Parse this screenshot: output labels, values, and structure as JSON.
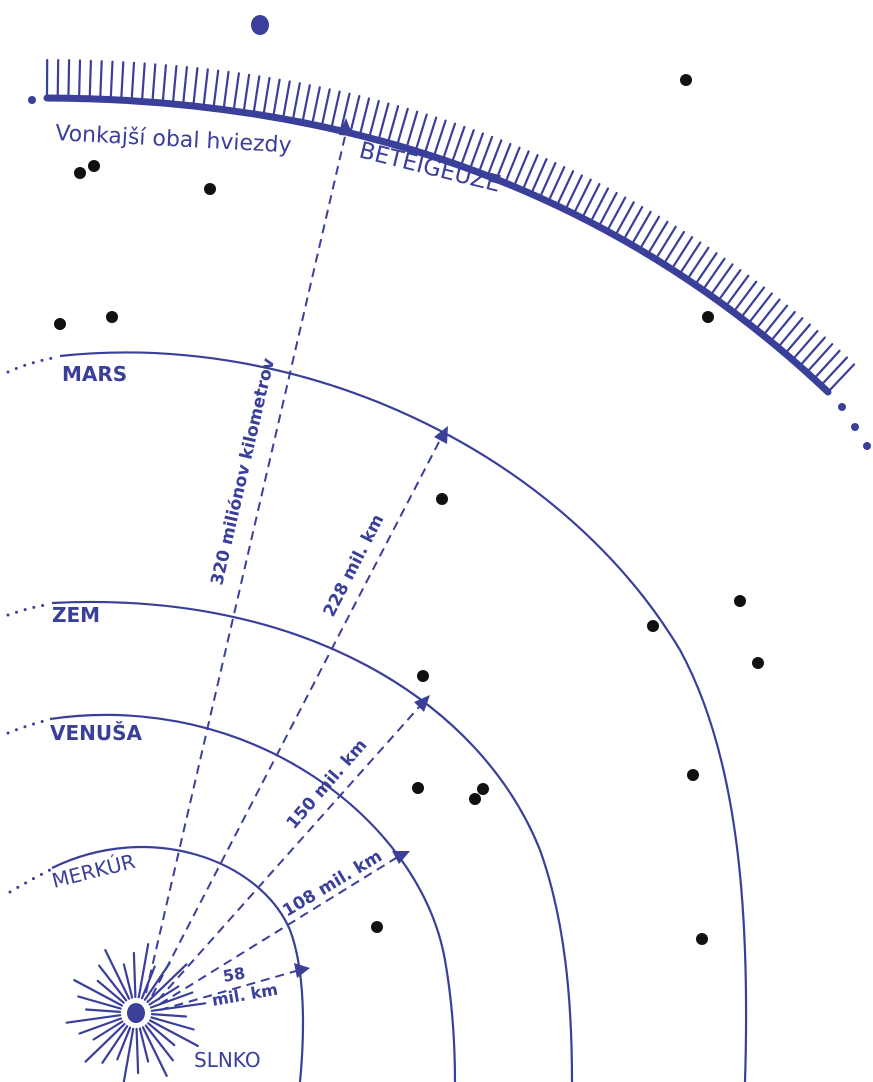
{
  "star": {
    "label_outer": "Vonkajší obal hviezdy",
    "label_name": "BETEIGEUZE"
  },
  "sun": {
    "label": "SLNKO"
  },
  "planets": [
    {
      "id": "merkur",
      "name": "MERKÚR",
      "distance_label": [
        "58",
        "mil. km"
      ]
    },
    {
      "id": "venusa",
      "name": "VENUŠA",
      "distance_label": [
        "108 mil. km"
      ]
    },
    {
      "id": "zem",
      "name": "ZEM",
      "distance_label": [
        "150 mil. km"
      ]
    },
    {
      "id": "mars",
      "name": "MARS",
      "distance_label": [
        "228 mil. km"
      ]
    }
  ],
  "betelgeuse_distance_label": "320 miliónov kilometrov",
  "colors": {
    "ink": "#3a3f9a",
    "stars": "#111111",
    "background": "#ffffff"
  }
}
